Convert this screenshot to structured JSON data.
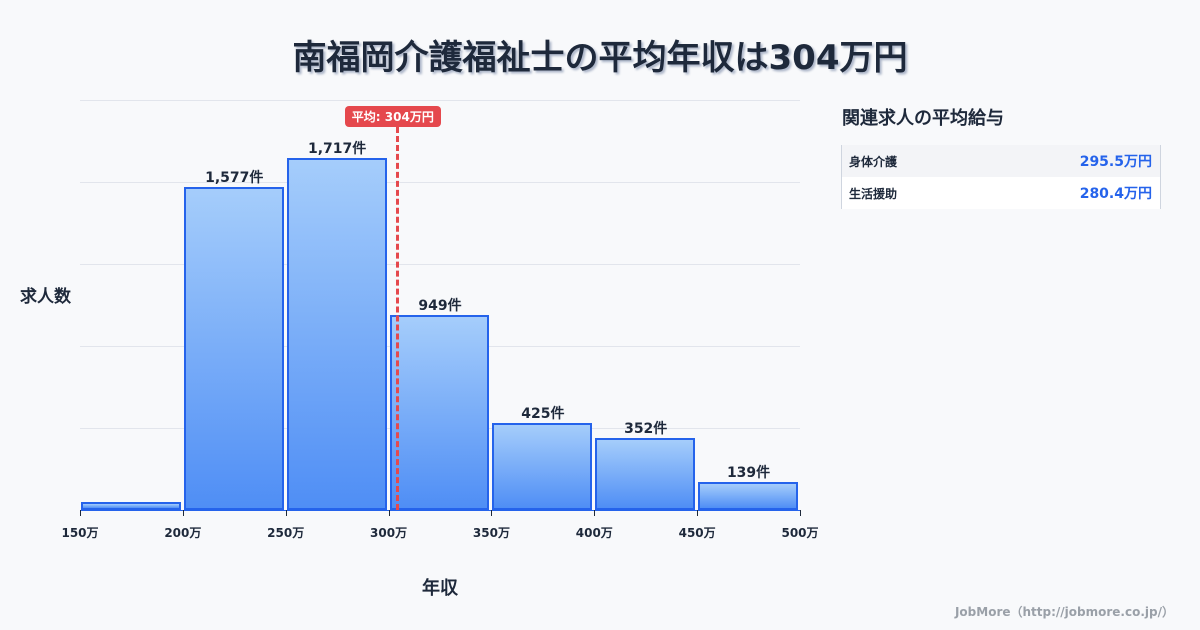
{
  "title": "南福岡介護福祉士の平均年収は304万円",
  "axis": {
    "ylabel": "求人数",
    "xlabel": "年収"
  },
  "mean": {
    "label": "平均: 304万円",
    "value": 304,
    "color": "#e5484d"
  },
  "colors": {
    "bar_border": "#2563eb",
    "bar_top": "#a5cdfb",
    "bar_bottom": "#4f8ef5",
    "accent": "#2563eb"
  },
  "chart_data": {
    "type": "bar",
    "title": "南福岡介護福祉士の平均年収は304万円",
    "xlabel": "年収",
    "ylabel": "求人数",
    "categories": [
      "150-200万",
      "200-250万",
      "250-300万",
      "300-350万",
      "350-400万",
      "400-450万",
      "450-500万"
    ],
    "values": [
      25,
      1577,
      1717,
      949,
      425,
      352,
      139
    ],
    "value_labels": [
      "",
      "1,577件",
      "1,717件",
      "949件",
      "425件",
      "352件",
      "139件"
    ],
    "x_ticks": [
      "150万",
      "200万",
      "250万",
      "300万",
      "350万",
      "400万",
      "450万",
      "500万"
    ],
    "ylim": [
      0,
      2000
    ],
    "grid": true,
    "annotations": [
      {
        "type": "vline",
        "x": 304,
        "label": "平均: 304万円"
      }
    ]
  },
  "side_panel": {
    "title": "関連求人の平均給与",
    "rows": [
      {
        "name": "身体介護",
        "value": "295.5万円"
      },
      {
        "name": "生活援助",
        "value": "280.4万円"
      }
    ]
  },
  "footer": "JobMore（http://jobmore.co.jp/）"
}
